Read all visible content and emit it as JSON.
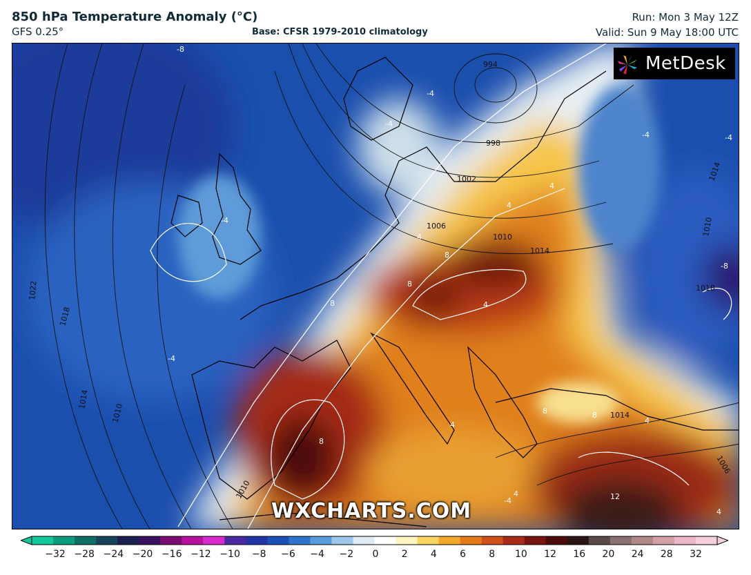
{
  "header": {
    "title": "850 hPa Temperature Anomaly (°C)",
    "model": "GFS 0.25°",
    "base": "Base: CFSR 1979-2010 climatology",
    "run": "Run: Mon 3 May 12Z",
    "valid": "Valid: Sun 9 May 18:00 UTC"
  },
  "logo": {
    "text": "MetDesk"
  },
  "watermark": "WXCHARTS.COM",
  "map": {
    "pressure_labels": [
      "994",
      "998",
      "1002",
      "1006",
      "1010",
      "1014",
      "1018",
      "1022",
      "1014",
      "1010",
      "1014",
      "1018",
      "1010",
      "1014",
      "1006",
      "1010"
    ],
    "anomaly_labels": [
      "-8",
      "-4",
      "-4",
      "-4",
      "-4",
      "-4",
      "-4",
      "4",
      "4",
      "4",
      "8",
      "8",
      "8",
      "8",
      "8",
      "8",
      "4",
      "4",
      "4",
      "12",
      "-8",
      "-4",
      "4",
      "4"
    ]
  },
  "colorbar": {
    "tick_labels": [
      "−32",
      "−28",
      "−24",
      "−20",
      "−16",
      "−12",
      "−10",
      "−8",
      "−6",
      "−4",
      "−2",
      "0",
      "2",
      "4",
      "6",
      "8",
      "10",
      "12",
      "16",
      "20",
      "24",
      "28",
      "32"
    ],
    "colors": [
      "#12c79a",
      "#0e9b7e",
      "#0f6e66",
      "#17445a",
      "#1d2152",
      "#3a1160",
      "#7a0d72",
      "#b6129e",
      "#d92ad0",
      "#4a2aa0",
      "#2233a8",
      "#1c4fb8",
      "#2e73cc",
      "#5a9bdc",
      "#9cc6ea",
      "#dfeaf2",
      "#ffffff",
      "#fff5c0",
      "#f9d560",
      "#f3a92c",
      "#e57a1a",
      "#d0501a",
      "#a82a18",
      "#7a1410",
      "#4d0c0c",
      "#2a1414",
      "#5a4a4a",
      "#8a7070",
      "#b08888",
      "#d4a0a8",
      "#eab8c8",
      "#f5d0dc"
    ]
  }
}
